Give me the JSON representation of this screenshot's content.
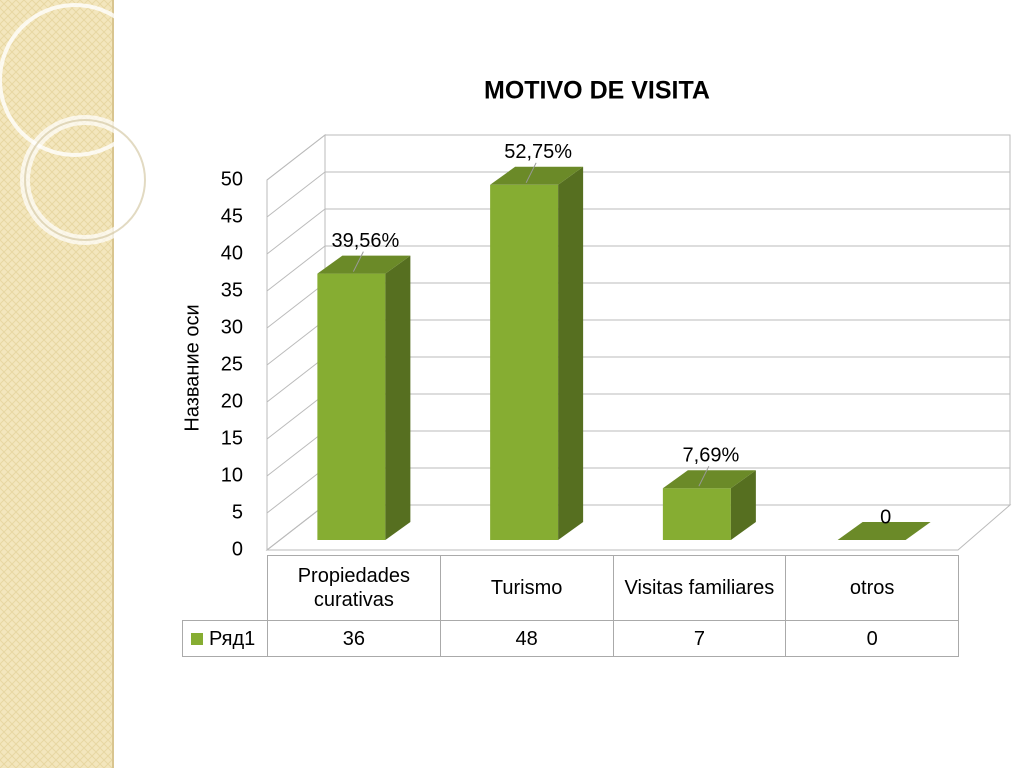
{
  "chart_data": {
    "type": "bar",
    "title": "MOTIVO DE VISITA",
    "y_label": "Название оси",
    "categories": [
      "Propiedades curativas",
      "Turismo",
      "Visitas familiares",
      "otros"
    ],
    "series": [
      {
        "name": "Ряд1",
        "color": "#86ad32",
        "values": [
          36,
          48,
          7,
          0
        ],
        "value_labels": [
          "39,56%",
          "52,75%",
          "7,69%",
          "0"
        ]
      }
    ],
    "ylim": [
      0,
      50
    ],
    "yticks": [
      0,
      5,
      10,
      15,
      20,
      25,
      30,
      35,
      40,
      45,
      50
    ],
    "grid": true,
    "data_table": true
  }
}
